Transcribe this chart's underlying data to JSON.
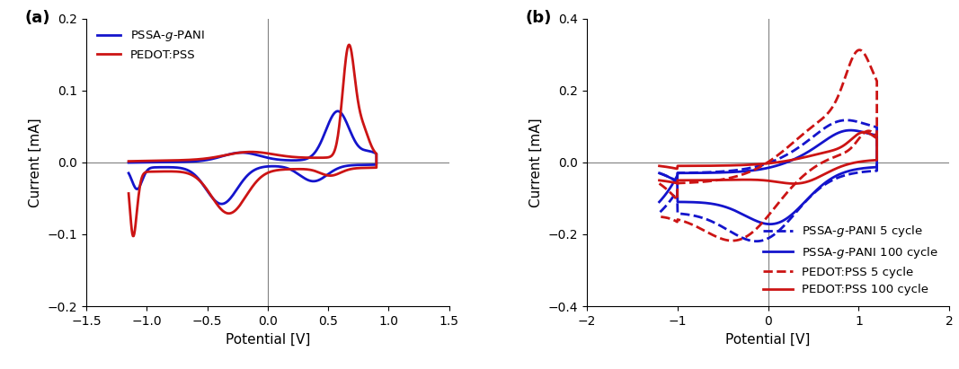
{
  "panel_a": {
    "title": "(a)",
    "xlabel": "Potential [V]",
    "ylabel": "Current [mA]",
    "xlim": [
      -1.5,
      1.5
    ],
    "ylim": [
      -0.2,
      0.2
    ],
    "xticks": [
      -1.5,
      -1.0,
      -0.5,
      0.0,
      0.5,
      1.0,
      1.5
    ],
    "yticks": [
      -0.2,
      -0.1,
      0.0,
      0.1,
      0.2
    ],
    "blue_color": "#1414CC",
    "red_color": "#CC1414",
    "legend": [
      "PSSA-g-PANI",
      "PEDOT:PSS"
    ]
  },
  "panel_b": {
    "title": "(b)",
    "xlabel": "Potential [V]",
    "ylabel": "Current [mA]",
    "xlim": [
      -2.0,
      2.0
    ],
    "ylim": [
      -0.4,
      0.4
    ],
    "xticks": [
      -2.0,
      -1.0,
      0.0,
      1.0,
      2.0
    ],
    "yticks": [
      -0.4,
      -0.2,
      0.0,
      0.2,
      0.4
    ],
    "blue_color": "#1414CC",
    "red_color": "#CC1414",
    "legend": [
      "PSSA-g-PANI 5 cycle",
      "PSSA-g-PANI 100 cycle",
      "PEDOT:PSS 5 cycle",
      "PEDOT:PSS 100 cycle"
    ]
  }
}
